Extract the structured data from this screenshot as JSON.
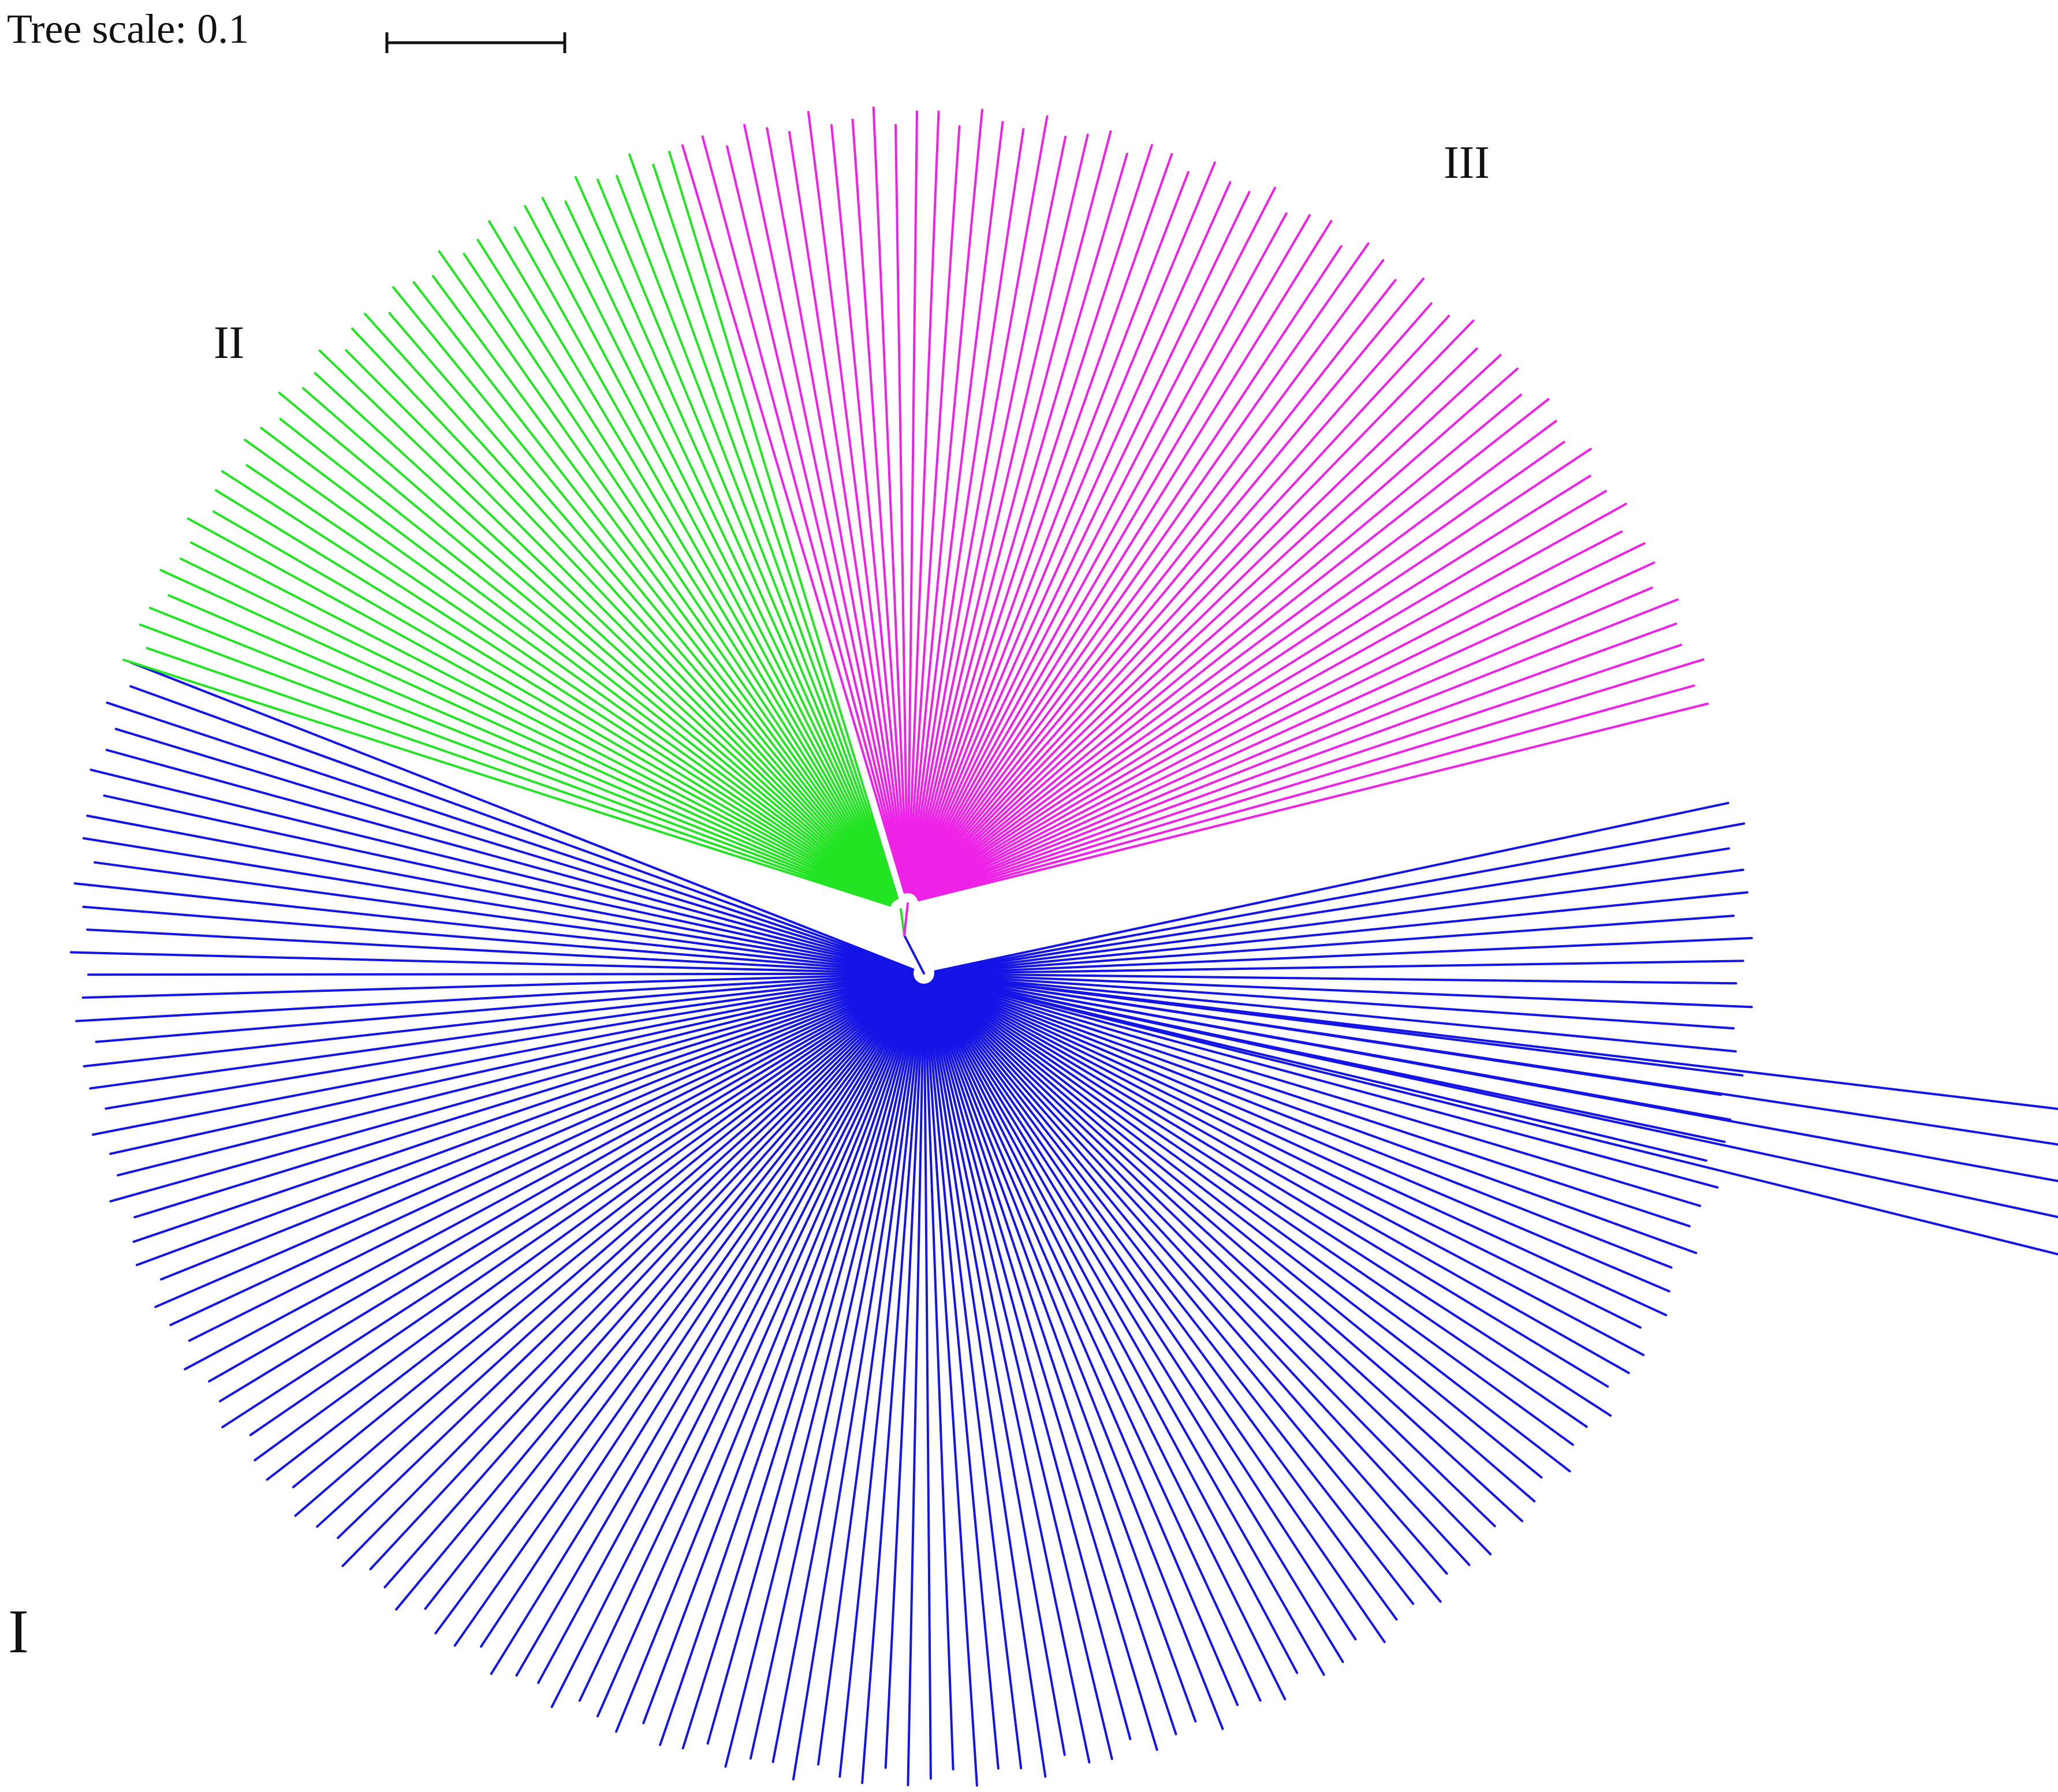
{
  "scale_bar": {
    "label": "Tree scale: 0.1",
    "value": 0.1
  },
  "clades": [
    {
      "id": "I",
      "label": "I",
      "color": "#1414e6",
      "main_fan": {
        "start_deg": 160,
        "end_deg": 370,
        "count": 135
      },
      "outliers": {
        "start_deg": 345,
        "end_deg": 352,
        "count": 5
      }
    },
    {
      "id": "II",
      "label": "II",
      "color": "#22e422",
      "main_fan": {
        "start_deg": 107,
        "end_deg": 160,
        "count": 41
      }
    },
    {
      "id": "III",
      "label": "III",
      "color": "#ee22e6",
      "main_fan": {
        "start_deg": 17,
        "end_deg": 106,
        "count": 61
      }
    }
  ]
}
